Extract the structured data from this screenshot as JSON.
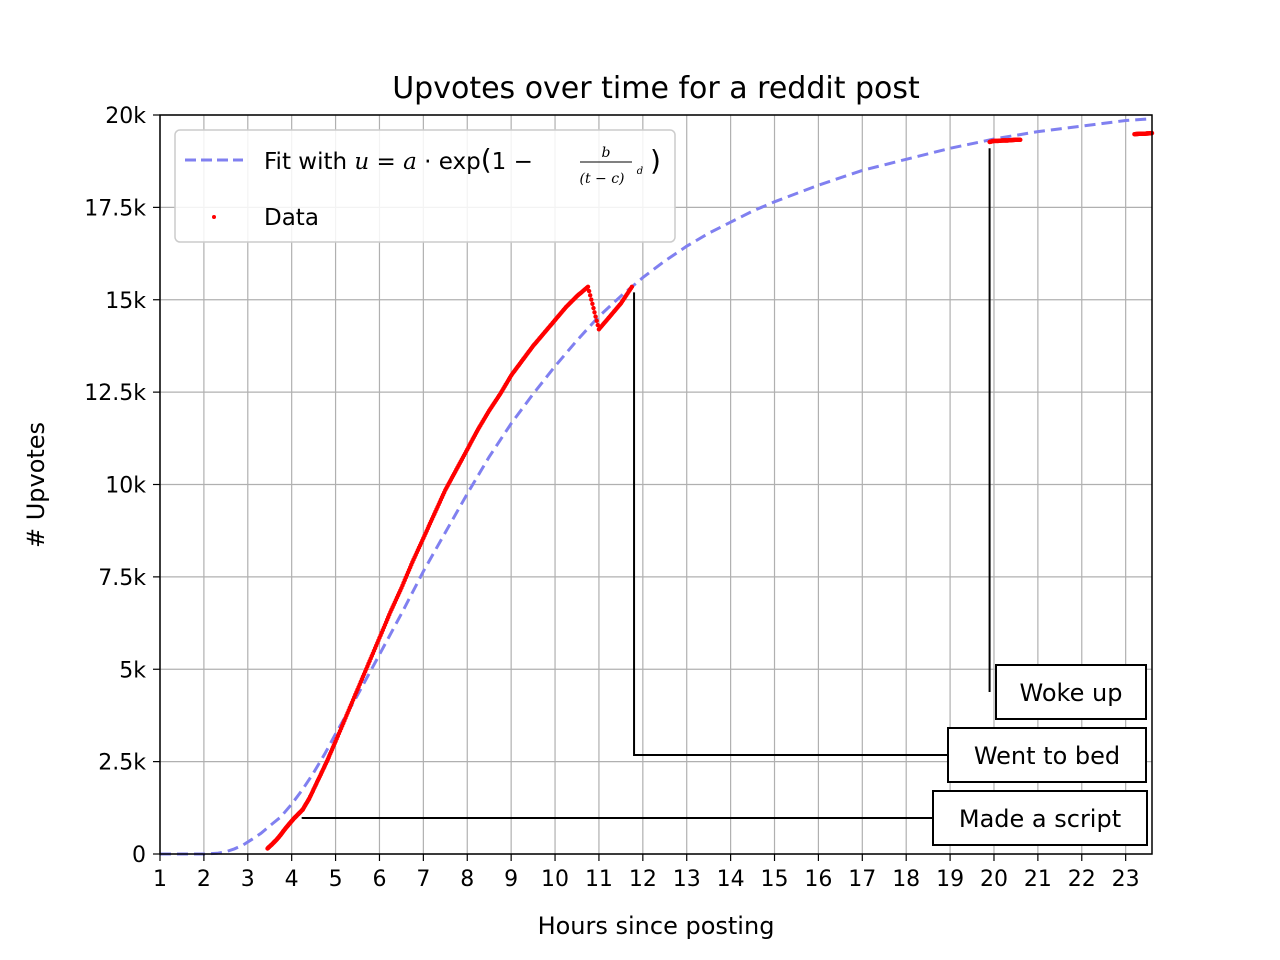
{
  "chart_data": {
    "type": "scatter",
    "title": "Upvotes over time for a reddit post",
    "xlabel": "Hours since posting",
    "ylabel": "# Upvotes",
    "xlim": [
      1,
      23.6
    ],
    "ylim": [
      0,
      20000
    ],
    "grid": true,
    "legend_position": "top-left",
    "x_ticks": [
      1,
      2,
      3,
      4,
      5,
      6,
      7,
      8,
      9,
      10,
      11,
      12,
      13,
      14,
      15,
      16,
      17,
      18,
      19,
      20,
      21,
      22,
      23
    ],
    "x_tick_labels": [
      "1",
      "2",
      "3",
      "4",
      "5",
      "6",
      "7",
      "8",
      "9",
      "10",
      "11",
      "12",
      "13",
      "14",
      "15",
      "16",
      "17",
      "18",
      "19",
      "20",
      "21",
      "22",
      "23"
    ],
    "y_ticks": [
      0,
      2500,
      5000,
      7500,
      10000,
      12500,
      15000,
      17500,
      20000
    ],
    "y_tick_labels": [
      "0",
      "2.5k",
      "5k",
      "7.5k",
      "10k",
      "12.5k",
      "15k",
      "17.5k",
      "20k"
    ],
    "series": [
      {
        "name": "Fit with u = a·exp(1 − b/(t − c)^d)",
        "kind": "line",
        "style": "dashed",
        "color": "#8080f0",
        "x": [
          1,
          1.5,
          2,
          2.3,
          2.5,
          2.7,
          2.9,
          3.1,
          3.3,
          3.5,
          3.75,
          4,
          4.25,
          4.5,
          4.75,
          5,
          5.5,
          6,
          6.5,
          7,
          7.5,
          8,
          8.5,
          9,
          9.5,
          10,
          10.5,
          11,
          11.5,
          12,
          12.5,
          13,
          13.5,
          14,
          14.5,
          15,
          16,
          17,
          18,
          19,
          20,
          21,
          22,
          23,
          23.6
        ],
        "values": [
          0,
          0,
          0,
          20,
          60,
          140,
          250,
          400,
          560,
          760,
          1000,
          1350,
          1750,
          2200,
          2700,
          3250,
          4300,
          5400,
          6500,
          7650,
          8700,
          9750,
          10750,
          11650,
          12450,
          13200,
          13900,
          14550,
          15100,
          15600,
          16050,
          16450,
          16800,
          17100,
          17400,
          17650,
          18100,
          18500,
          18800,
          19100,
          19350,
          19550,
          19700,
          19850,
          19900
        ]
      },
      {
        "name": "Data",
        "kind": "scatter",
        "color": "#ff0000",
        "segments": [
          {
            "x": [
              3.45,
              3.55,
              3.65,
              3.75,
              3.85,
              3.95,
              4.05,
              4.15,
              4.25,
              4.4,
              4.6,
              4.8,
              5,
              5.25,
              5.5,
              5.75,
              6,
              6.25,
              6.5,
              6.75,
              7,
              7.25,
              7.5,
              7.75,
              8,
              8.25,
              8.5,
              8.75,
              9,
              9.25,
              9.5,
              9.75,
              10,
              10.25,
              10.5,
              10.75,
              11,
              11.25,
              11.5,
              11.75
            ],
            "values": [
              150,
              260,
              380,
              520,
              680,
              820,
              960,
              1080,
              1200,
              1500,
              2000,
              2500,
              3050,
              3750,
              4450,
              5150,
              5850,
              6550,
              7200,
              7900,
              8550,
              9200,
              9850,
              10400,
              10950,
              11500,
              12000,
              12450,
              12950,
              13350,
              13750,
              14100,
              14450,
              14800,
              15100,
              15350,
              14200,
              14550,
              14900,
              15350
            ]
          },
          {
            "x": [
              19.9,
              20.0,
              20.1,
              20.2,
              20.3,
              20.4,
              20.5,
              20.6
            ],
            "values": [
              19270,
              19300,
              19300,
              19310,
              19310,
              19320,
              19330,
              19330
            ]
          },
          {
            "x": [
              23.2,
              23.3,
              23.4,
              23.5,
              23.6
            ],
            "values": [
              19480,
              19490,
              19490,
              19500,
              19510
            ]
          }
        ]
      }
    ],
    "annotations": [
      {
        "text": "Made a script",
        "x": 4.25,
        "y": 950
      },
      {
        "text": "Went to bed",
        "x": 11.8,
        "y": 15200
      },
      {
        "text": "Woke up",
        "x": 19.9,
        "y": 19100
      }
    ]
  },
  "legend": {
    "fit_prefix": "Fit with ",
    "fit_u": "u",
    "fit_eq": " = ",
    "fit_a": "a",
    "fit_dot": " · exp",
    "fit_paren_open": "(",
    "fit_one": "1 − ",
    "fit_frac_num": "b",
    "fit_frac_den": "(t − c)",
    "fit_frac_den_exp": "d",
    "fit_paren_close": ")",
    "data_label": "Data"
  }
}
